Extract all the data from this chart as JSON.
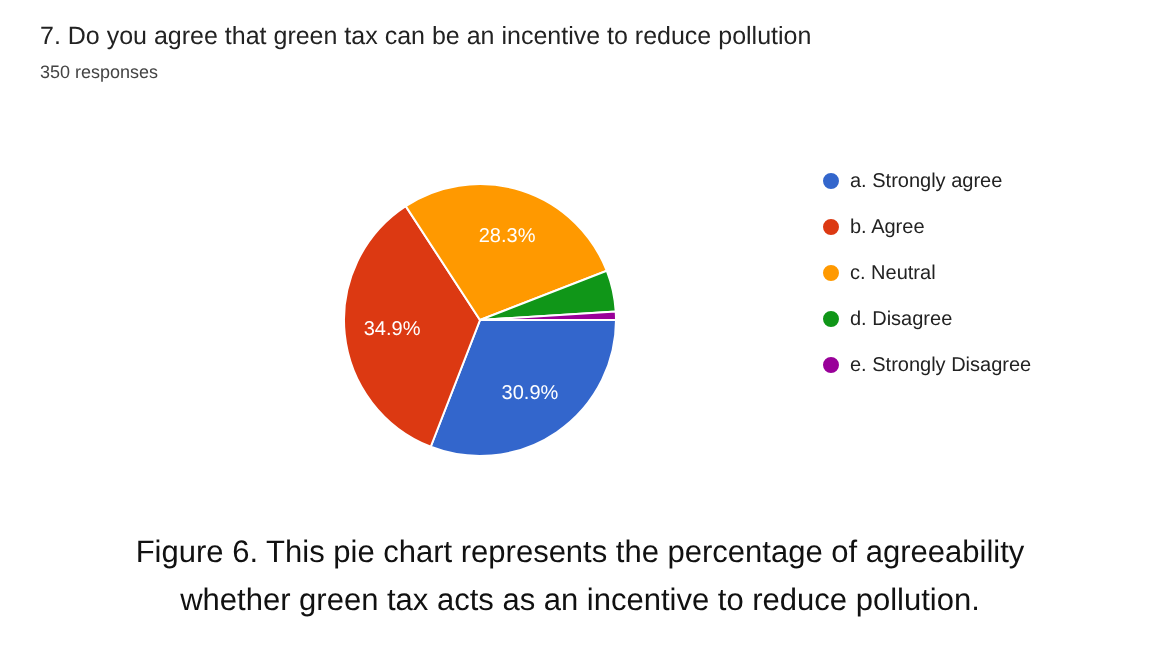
{
  "chart_data": {
    "type": "pie",
    "title": "7. Do you agree that green tax can be an incentive to reduce pollution",
    "subtitle": "350 responses",
    "categories": [
      "a. Strongly agree",
      "b. Agree",
      "c. Neutral",
      "d. Disagree",
      "e. Strongly Disagree"
    ],
    "values": [
      30.9,
      34.9,
      28.3,
      4.9,
      1.0
    ],
    "colors": [
      "#3366cc",
      "#dc3912",
      "#ff9900",
      "#109618",
      "#990099"
    ],
    "value_labels": [
      "30.9%",
      "34.9%",
      "28.3%",
      null,
      null
    ],
    "legend": "right",
    "annotations": [
      "Figure 6. This pie chart represents the percentage of agreeability whether green tax acts as an incentive to reduce pollution."
    ]
  }
}
